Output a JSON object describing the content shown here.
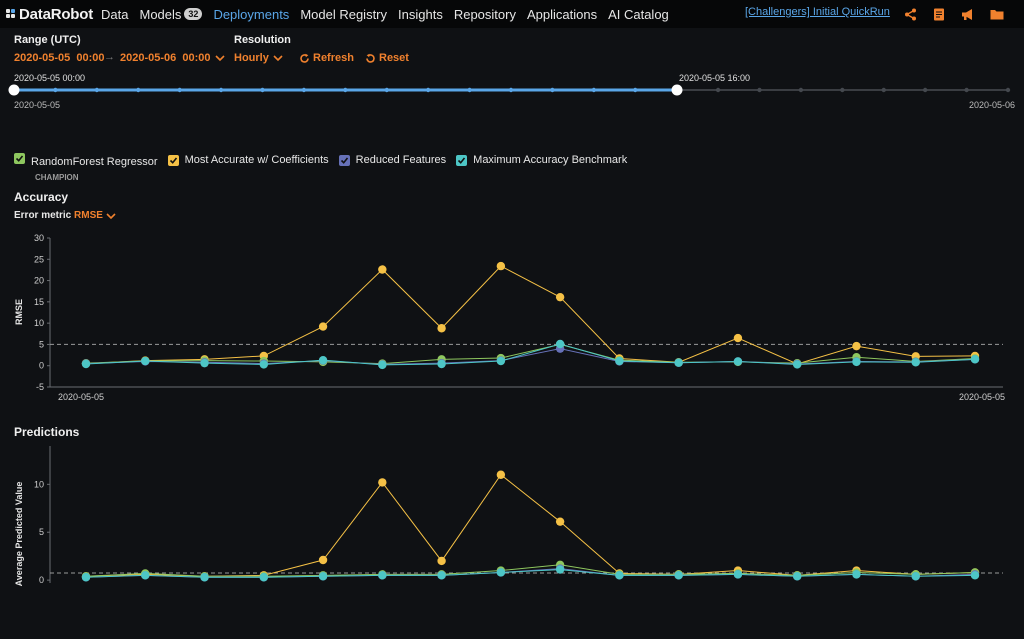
{
  "nav": {
    "logo": "DataRobot",
    "items": [
      {
        "label": "Data"
      },
      {
        "label": "Models",
        "badge": "32"
      },
      {
        "label": "Deployments",
        "active": true
      },
      {
        "label": "Model Registry"
      },
      {
        "label": "Insights"
      },
      {
        "label": "Repository"
      },
      {
        "label": "Applications"
      },
      {
        "label": "AI Catalog"
      }
    ],
    "project": "[Challengers] Initial QuickRun",
    "icons": [
      "share-icon",
      "document-icon",
      "megaphone-icon",
      "folder-icon"
    ]
  },
  "controls": {
    "range_label": "Range (UTC)",
    "start_date": "2020-05-05",
    "start_time": "00:00",
    "end_date": "2020-05-06",
    "end_time": "00:00",
    "resolution_label": "Resolution",
    "resolution_value": "Hourly",
    "refresh": "Refresh",
    "reset": "Reset"
  },
  "slider": {
    "start_label": "2020-05-05 00:00",
    "handle_label": "2020-05-05 16:00",
    "left_axis": "2020-05-05",
    "right_axis": "2020-05-06",
    "selected_fraction": 0.667
  },
  "legend": [
    {
      "label": "RandomForest Regressor",
      "sub": "CHAMPION",
      "color": "#8ec75f"
    },
    {
      "label": "Most Accurate w/ Coefficients",
      "color": "#f5c146"
    },
    {
      "label": "Reduced Features",
      "color": "#6671b8"
    },
    {
      "label": "Maximum Accuracy Benchmark",
      "color": "#4dc6c6"
    }
  ],
  "accuracy": {
    "title": "Accuracy",
    "metric_label": "Error metric",
    "metric_value": "RMSE"
  },
  "predictions": {
    "title": "Predictions"
  },
  "chart_data": [
    {
      "type": "line",
      "ylabel": "RMSE",
      "ylim": [
        -5,
        30
      ],
      "yticks": [
        -5,
        0,
        5,
        10,
        15,
        20,
        25,
        30
      ],
      "x_start_label": "2020-05-05",
      "x_end_label": "2020-05-05",
      "reference_line": 5,
      "series": [
        {
          "name": "Most Accurate w/ Coefficients",
          "color": "#f5c146",
          "values": [
            0.5,
            1.2,
            1.5,
            2.3,
            9.2,
            22.6,
            8.8,
            23.4,
            16.1,
            1.7,
            0.8,
            6.5,
            0.4,
            4.6,
            2.2,
            2.3
          ]
        },
        {
          "name": "RandomForest Regressor",
          "color": "#8ec75f",
          "values": [
            0.6,
            1.1,
            1.2,
            1.1,
            0.9,
            0.5,
            1.5,
            1.8,
            5.0,
            1.3,
            0.8,
            0.9,
            0.6,
            2.0,
            1.0,
            1.7
          ]
        },
        {
          "name": "Reduced Features",
          "color": "#6671b8",
          "values": [
            0.5,
            1.0,
            0.8,
            0.5,
            1.2,
            0.3,
            0.6,
            1.2,
            4.0,
            1.0,
            0.7,
            1.0,
            0.4,
            1.0,
            0.9,
            1.5
          ]
        },
        {
          "name": "Maximum Accuracy Benchmark",
          "color": "#4dc6c6",
          "values": [
            0.4,
            1.1,
            0.6,
            0.3,
            1.3,
            0.2,
            0.4,
            1.1,
            5.1,
            1.1,
            0.7,
            1.0,
            0.3,
            0.9,
            0.8,
            1.5
          ]
        }
      ]
    },
    {
      "type": "line",
      "ylabel": "Average Predicted Value",
      "ylim": [
        -0.3,
        14
      ],
      "yticks": [
        0,
        5,
        10
      ],
      "reference_line": 0.75,
      "series": [
        {
          "name": "Most Accurate w/ Coefficients",
          "color": "#f5c146",
          "values": [
            0.4,
            0.6,
            0.4,
            0.5,
            2.1,
            10.2,
            2.0,
            11.0,
            6.1,
            0.7,
            0.6,
            1.0,
            0.5,
            1.0,
            0.6,
            0.8
          ]
        },
        {
          "name": "RandomForest Regressor",
          "color": "#8ec75f",
          "values": [
            0.4,
            0.7,
            0.4,
            0.4,
            0.5,
            0.6,
            0.6,
            1.0,
            1.6,
            0.6,
            0.6,
            0.7,
            0.5,
            0.8,
            0.6,
            0.8
          ]
        },
        {
          "name": "Reduced Features",
          "color": "#6671b8",
          "values": [
            0.3,
            0.5,
            0.3,
            0.3,
            0.4,
            0.5,
            0.5,
            0.8,
            1.2,
            0.5,
            0.5,
            0.6,
            0.4,
            0.6,
            0.4,
            0.6
          ]
        },
        {
          "name": "Maximum Accuracy Benchmark",
          "color": "#4dc6c6",
          "values": [
            0.3,
            0.5,
            0.3,
            0.3,
            0.4,
            0.5,
            0.5,
            0.8,
            1.1,
            0.5,
            0.5,
            0.6,
            0.4,
            0.6,
            0.4,
            0.5
          ]
        }
      ]
    }
  ]
}
